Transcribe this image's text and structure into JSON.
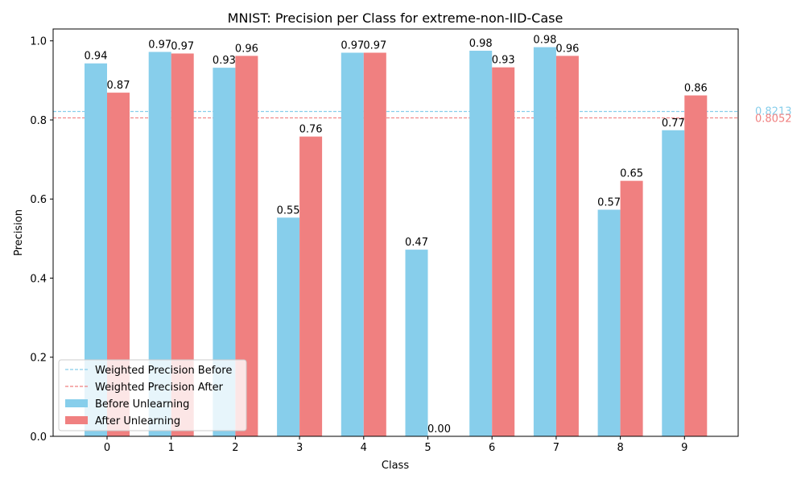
{
  "chart_data": {
    "type": "bar",
    "title": "MNIST: Precision per Class for extreme-non-IID-Case",
    "xlabel": "Class",
    "ylabel": "Precision",
    "ylim": [
      0,
      1.03
    ],
    "yticks": [
      "0.0",
      "0.2",
      "0.4",
      "0.6",
      "0.8",
      "1.0"
    ],
    "categories": [
      "0",
      "1",
      "2",
      "3",
      "4",
      "5",
      "6",
      "7",
      "8",
      "9"
    ],
    "series": [
      {
        "name": "Before Unlearning",
        "color": "#87ceeb",
        "values": [
          0.943,
          0.972,
          0.932,
          0.553,
          0.97,
          0.472,
          0.975,
          0.984,
          0.573,
          0.774
        ],
        "labels": [
          "0.94",
          "0.97",
          "0.93",
          "0.55",
          "0.97",
          "0.47",
          "0.98",
          "0.98",
          "0.57",
          "0.77"
        ]
      },
      {
        "name": "After Unlearning",
        "color": "#f08080",
        "values": [
          0.869,
          0.968,
          0.962,
          0.758,
          0.97,
          0.0,
          0.933,
          0.962,
          0.646,
          0.862
        ],
        "labels": [
          "0.87",
          "0.97",
          "0.96",
          "0.76",
          "0.97",
          "0.00",
          "0.93",
          "0.96",
          "0.65",
          "0.86"
        ]
      }
    ],
    "reference_lines": [
      {
        "name": "Weighted Precision Before",
        "value": 0.8213,
        "label": "0.8213",
        "color": "#87ceeb"
      },
      {
        "name": "Weighted Precision After",
        "value": 0.8052,
        "label": "0.8052",
        "color": "#f08080"
      }
    ],
    "legend_position": "lower left",
    "grid": false
  }
}
